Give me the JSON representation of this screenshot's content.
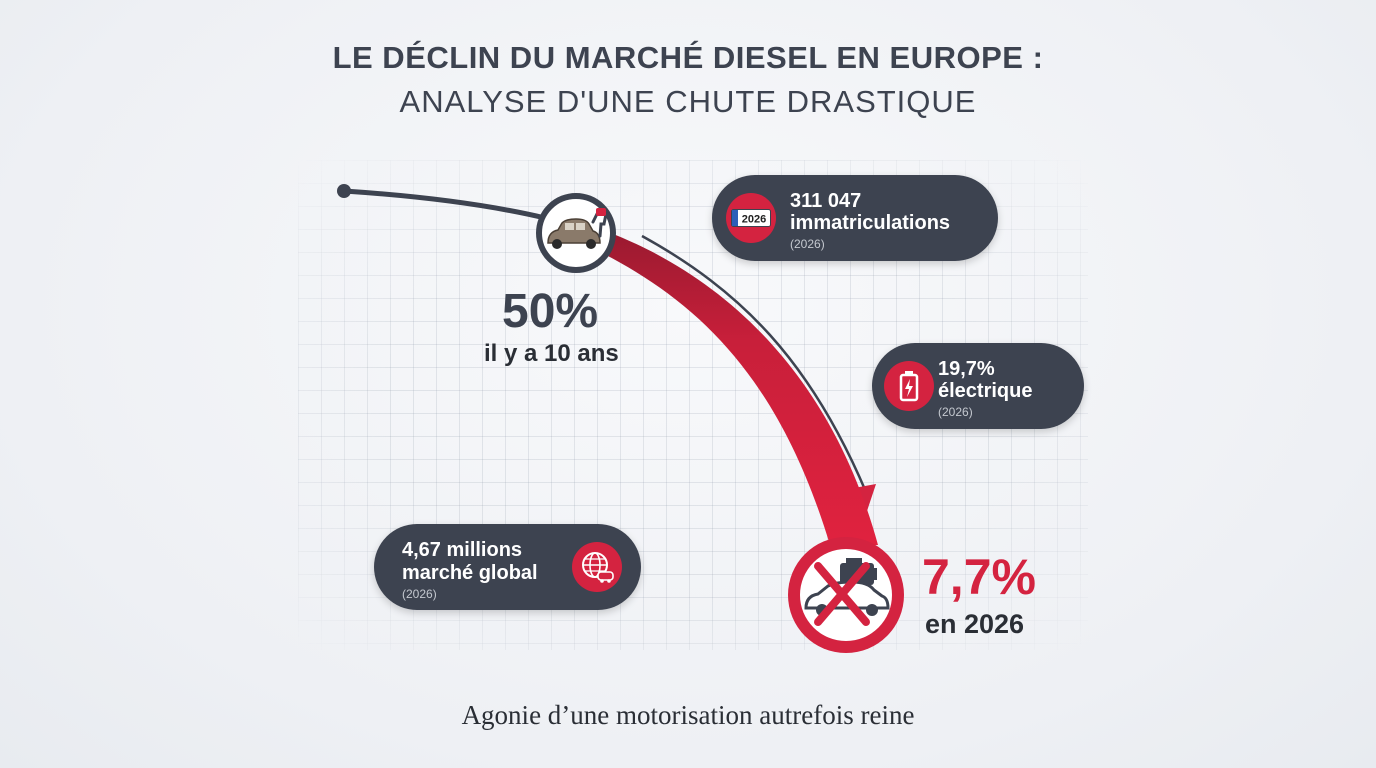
{
  "title": {
    "line1": "LE DÉCLIN DU MARCHÉ DIESEL EN EUROPE :",
    "line2": "ANALYSE D'UNE CHUTE DRASTIQUE"
  },
  "start_point": {
    "value": "50%",
    "label": "il y a 10 ans",
    "icon": "diesel-car-fuel-pump-icon"
  },
  "end_point": {
    "value": "7,7%",
    "label": "en 2026",
    "icon": "crossed-out-diesel-car-icon"
  },
  "cards": {
    "registrations": {
      "value": "311 047",
      "label": "immatriculations",
      "year": "(2026)",
      "icon": "license-plate-icon",
      "plate_text": "2026"
    },
    "electric": {
      "value": "19,7%",
      "label": "électrique",
      "year": "(2026)",
      "icon": "battery-icon"
    },
    "global_market": {
      "value": "4,67 millions",
      "label": "marché global",
      "year": "(2026)",
      "icon": "globe-car-icon"
    }
  },
  "caption": "Agonie d’une motorisation autrefois reine",
  "colors": {
    "accent_red": "#d42340",
    "dark_slate": "#3d4350",
    "background": "#f2f4f7"
  },
  "chart_data": {
    "type": "line",
    "x": [
      "il y a 10 ans",
      "2026"
    ],
    "values": [
      50,
      7.7
    ],
    "units": "%"
  }
}
